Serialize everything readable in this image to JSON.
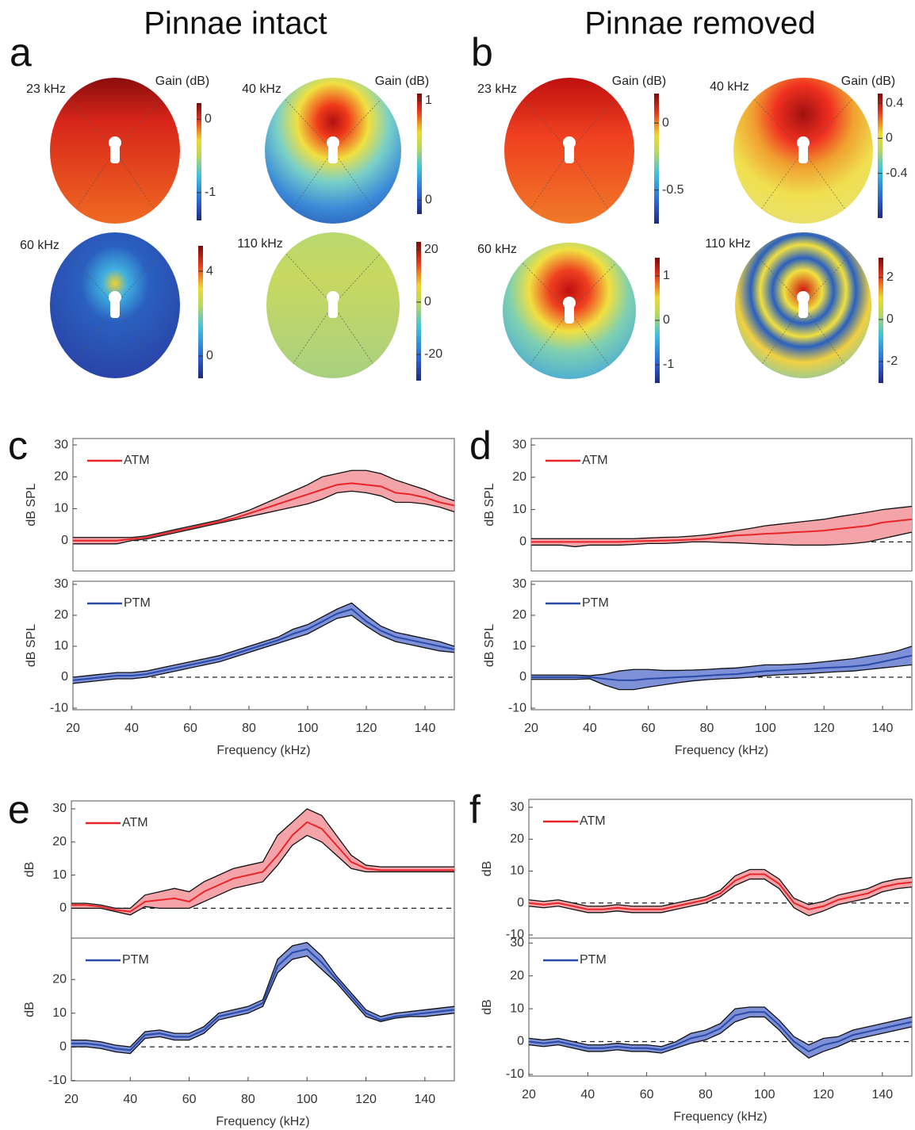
{
  "column_titles": [
    "Pinnae intact",
    "Pinnae removed"
  ],
  "panel_labels": [
    "a",
    "b",
    "c",
    "d",
    "e",
    "f"
  ],
  "chart_data": [
    {
      "type": "heatmap",
      "title": "23 kHz",
      "colorbar_label": "Gain (dB)",
      "clim": [
        -1.38,
        0.22
      ],
      "cticks": [
        0,
        -1
      ]
    },
    {
      "type": "heatmap",
      "title": "40 kHz",
      "colorbar_label": "Gain (dB)",
      "clim": [
        -0.14,
        1.07
      ],
      "cticks": [
        1,
        0
      ]
    },
    {
      "type": "heatmap",
      "title": "60 kHz",
      "clim": [
        -1.05,
        5.2
      ],
      "cticks": [
        4,
        0
      ]
    },
    {
      "type": "heatmap",
      "title": "110 kHz",
      "clim": [
        -30,
        23
      ],
      "cticks": [
        20,
        0,
        -20
      ]
    },
    {
      "type": "heatmap",
      "title": "23 kHz",
      "colorbar_label": "Gain (dB)",
      "clim": [
        -0.75,
        0.22
      ],
      "cticks": [
        0,
        -0.5
      ]
    },
    {
      "type": "heatmap",
      "title": "40 kHz",
      "colorbar_label": "Gain (dB)",
      "clim": [
        -0.91,
        0.51
      ],
      "cticks": [
        0.4,
        0,
        -0.4
      ]
    },
    {
      "type": "heatmap",
      "title": "60 kHz",
      "clim": [
        -1.41,
        1.41
      ],
      "cticks": [
        1,
        0,
        -1
      ]
    },
    {
      "type": "heatmap",
      "title": "110 kHz",
      "clim": [
        -3.02,
        2.94
      ],
      "cticks": [
        2,
        0,
        -2
      ]
    },
    {
      "type": "line",
      "ylabel": "dB SPL",
      "xlim": [
        20,
        150
      ],
      "ylim": [
        -9.5,
        32
      ],
      "yticks": [
        0,
        10,
        20,
        30
      ],
      "reference_line": 0,
      "x": [
        20,
        25,
        30,
        35,
        40,
        45,
        50,
        55,
        60,
        65,
        70,
        75,
        80,
        85,
        90,
        95,
        100,
        105,
        110,
        115,
        120,
        125,
        130,
        135,
        140,
        145,
        150
      ],
      "series": [
        {
          "name": "ATM",
          "color": "#e8262a",
          "band_color": "#f4a3a8",
          "values": [
            0,
            0,
            0,
            0,
            0.5,
            1,
            2,
            3,
            4,
            5,
            6,
            7,
            8.5,
            10,
            11.5,
            13,
            14.5,
            16,
            17.5,
            18,
            17.5,
            17,
            15,
            14.5,
            13.5,
            12,
            11
          ],
          "lower": [
            -1,
            -1,
            -1,
            -1,
            0,
            0.5,
            1.5,
            2.5,
            3.5,
            4.5,
            5.5,
            6.5,
            7.5,
            8.5,
            9.5,
            10.5,
            11.5,
            13,
            15,
            15.5,
            15,
            14,
            12,
            12,
            11.5,
            10.5,
            9
          ],
          "upper": [
            1,
            1,
            1,
            1,
            1,
            1.5,
            2.5,
            3.5,
            4.5,
            5.5,
            6.5,
            8,
            9.5,
            11.5,
            13.5,
            15.5,
            17.5,
            20,
            21,
            22,
            22,
            21,
            19,
            17.5,
            16,
            14,
            12.5
          ]
        }
      ]
    },
    {
      "type": "line",
      "ylabel": "dB SPL",
      "xlabel": "Frequency (kHz)",
      "xlim": [
        20,
        150
      ],
      "xticks": [
        20,
        40,
        60,
        80,
        100,
        120,
        140
      ],
      "ylim": [
        -10.5,
        31
      ],
      "yticks": [
        -10,
        0,
        10,
        20,
        30
      ],
      "reference_line": 0,
      "x": [
        20,
        25,
        30,
        35,
        40,
        45,
        50,
        55,
        60,
        65,
        70,
        75,
        80,
        85,
        90,
        95,
        100,
        105,
        110,
        115,
        120,
        125,
        130,
        135,
        140,
        145,
        150
      ],
      "series": [
        {
          "name": "PTM",
          "color": "#2a4aa8",
          "band_color": "#7d90d8",
          "values": [
            -1,
            -0.5,
            0,
            0.5,
            0.5,
            1,
            2,
            3,
            4,
            5,
            6,
            7.5,
            9,
            10.5,
            12,
            14,
            15.5,
            18,
            20.5,
            22,
            18,
            15,
            13,
            12,
            11,
            10,
            9
          ],
          "lower": [
            -2,
            -1.5,
            -1,
            -0.5,
            -0.5,
            0,
            1,
            2,
            3,
            4,
            5,
            6.5,
            8,
            9.5,
            11,
            12.5,
            14,
            16.5,
            19,
            20,
            16.5,
            13.5,
            11.5,
            10.5,
            9.5,
            8.5,
            8
          ],
          "upper": [
            0,
            0.5,
            1,
            1.5,
            1.5,
            2,
            3,
            4,
            5,
            6,
            7,
            8.5,
            10,
            11.5,
            13,
            15.5,
            17,
            19.5,
            22,
            24,
            20,
            16.5,
            14.5,
            13.5,
            12.5,
            11.5,
            10
          ]
        }
      ]
    },
    {
      "type": "line",
      "ylabel": "dB SPL",
      "xlim": [
        20,
        150
      ],
      "ylim": [
        -9,
        32
      ],
      "yticks": [
        0,
        10,
        20,
        30
      ],
      "reference_line": 0,
      "x": [
        20,
        25,
        30,
        35,
        40,
        45,
        50,
        55,
        60,
        65,
        70,
        75,
        80,
        85,
        90,
        95,
        100,
        105,
        110,
        115,
        120,
        125,
        130,
        135,
        140,
        145,
        150
      ],
      "series": [
        {
          "name": "ATM",
          "color": "#e8262a",
          "band_color": "#f4a3a8",
          "values": [
            0,
            0,
            0,
            0,
            0,
            0,
            0,
            0.2,
            0.3,
            0.4,
            0.5,
            0.7,
            1,
            1.5,
            2,
            2.2,
            2.5,
            2.7,
            3,
            3.2,
            3.5,
            4,
            4.5,
            5,
            6,
            6.5,
            7
          ],
          "lower": [
            -1,
            -1,
            -1,
            -1.5,
            -1,
            -1,
            -1,
            -0.8,
            -0.5,
            -0.5,
            -0.3,
            0,
            0,
            -0.2,
            -0.3,
            -0.5,
            -0.7,
            -0.8,
            -1,
            -1,
            -1,
            -0.8,
            -0.5,
            0,
            1,
            2,
            3
          ],
          "upper": [
            1,
            1,
            1,
            1,
            1,
            1,
            1,
            1,
            1.2,
            1.4,
            1.5,
            1.8,
            2.2,
            2.8,
            3.5,
            4.2,
            5,
            5.5,
            6,
            6.5,
            7,
            7.8,
            8.5,
            9.2,
            10,
            10.5,
            11
          ]
        }
      ]
    },
    {
      "type": "line",
      "ylabel": "dB SPL",
      "xlabel": "Frequency (kHz)",
      "xlim": [
        20,
        150
      ],
      "xticks": [
        20,
        40,
        60,
        80,
        100,
        120,
        140
      ],
      "ylim": [
        -10.5,
        31
      ],
      "yticks": [
        -10,
        0,
        10,
        20,
        30
      ],
      "reference_line": 0,
      "x": [
        20,
        25,
        30,
        35,
        40,
        45,
        50,
        55,
        60,
        65,
        70,
        75,
        80,
        85,
        90,
        95,
        100,
        105,
        110,
        115,
        120,
        125,
        130,
        135,
        140,
        145,
        150
      ],
      "series": [
        {
          "name": "PTM",
          "color": "#2a4aa8",
          "band_color": "#7d90d8",
          "values": [
            0,
            0,
            0,
            0,
            0,
            -0.5,
            -1,
            -1,
            -0.5,
            -0.3,
            0,
            0.2,
            0.5,
            0.8,
            1,
            1.5,
            2,
            2.2,
            2.5,
            2.7,
            3,
            3.2,
            3.5,
            4,
            5,
            6,
            7
          ],
          "lower": [
            -0.7,
            -0.7,
            -0.7,
            -0.7,
            -0.5,
            -2.5,
            -4,
            -4,
            -3.2,
            -2.5,
            -1.8,
            -1.2,
            -0.8,
            -0.5,
            -0.3,
            0,
            0.5,
            0.8,
            1,
            1.2,
            1.5,
            1.8,
            2,
            2.5,
            3,
            3.5,
            4
          ],
          "upper": [
            0.7,
            0.7,
            0.7,
            0.7,
            0.5,
            1,
            2,
            2.5,
            2.5,
            2.2,
            2.2,
            2.3,
            2.5,
            2.8,
            3,
            3.5,
            4,
            4,
            4.2,
            4.5,
            5,
            5.5,
            6,
            6.8,
            7.5,
            8.5,
            10
          ]
        }
      ]
    },
    {
      "type": "line",
      "ylabel": "dB",
      "xlim": [
        20,
        150
      ],
      "ylim": [
        -9,
        32.4
      ],
      "yticks": [
        0,
        10,
        20,
        30
      ],
      "reference_line": 0,
      "x": [
        20,
        25,
        30,
        35,
        40,
        45,
        50,
        55,
        60,
        65,
        70,
        75,
        80,
        85,
        90,
        95,
        100,
        105,
        110,
        115,
        120,
        125,
        130,
        135,
        140,
        145,
        150
      ],
      "series": [
        {
          "name": "ATM",
          "color": "#e8262a",
          "band_color": "#f4a3a8",
          "values": [
            1,
            1,
            0.5,
            -0.5,
            -1,
            2,
            2.5,
            3,
            2,
            5,
            7,
            9,
            10,
            11,
            16,
            22,
            26,
            24,
            19,
            14,
            12,
            11.5,
            11.5,
            11.5,
            11.5,
            11.5,
            11.5
          ],
          "lower": [
            0,
            0,
            0,
            -1,
            -2,
            0.5,
            0,
            0,
            0,
            2,
            4,
            6,
            7,
            8,
            13,
            19,
            22,
            20,
            16,
            12,
            11,
            11,
            11,
            11,
            11,
            11,
            11
          ],
          "upper": [
            1.5,
            1.5,
            1,
            0,
            0,
            4,
            5,
            6,
            5,
            8,
            10,
            12,
            13,
            14,
            22,
            26,
            30,
            28,
            22,
            16,
            13,
            12.5,
            12.5,
            12.5,
            12.5,
            12.5,
            12.5
          ]
        }
      ]
    },
    {
      "type": "line",
      "ylabel": "dB",
      "xlabel": "Frequency (kHz)",
      "xlim": [
        20,
        150
      ],
      "xticks": [
        20,
        40,
        60,
        80,
        100,
        120,
        140
      ],
      "ylim": [
        -10.1,
        32.3
      ],
      "yticks": [
        -10,
        0,
        10,
        20
      ],
      "reference_line": 0,
      "x": [
        20,
        25,
        30,
        35,
        40,
        45,
        50,
        55,
        60,
        65,
        70,
        75,
        80,
        85,
        90,
        95,
        100,
        105,
        110,
        115,
        120,
        125,
        130,
        135,
        140,
        145,
        150
      ],
      "series": [
        {
          "name": "PTM",
          "color": "#2a4aa8",
          "band_color": "#7d90d8",
          "values": [
            1,
            1,
            0.5,
            -0.5,
            -1,
            3.5,
            4,
            3,
            3,
            5,
            9,
            10,
            11,
            13,
            24,
            28,
            29,
            25,
            20,
            15,
            10,
            8,
            9,
            9.5,
            10,
            10.5,
            11
          ],
          "lower": [
            0,
            0,
            -0.5,
            -1.5,
            -2,
            2.5,
            3,
            2,
            2,
            4,
            8,
            9,
            10,
            12,
            22,
            26,
            27,
            23,
            19,
            14,
            9,
            7.5,
            8.5,
            9,
            9,
            9.5,
            10
          ],
          "upper": [
            2,
            2,
            1.5,
            0.5,
            0,
            4.5,
            5,
            4,
            4,
            6,
            10,
            11,
            12,
            14,
            26,
            30,
            31,
            27,
            21,
            16,
            11,
            9,
            10,
            10.5,
            11,
            11.5,
            12
          ]
        }
      ]
    },
    {
      "type": "line",
      "ylabel": "dB",
      "xlim": [
        20,
        150
      ],
      "ylim": [
        -11,
        32.5
      ],
      "yticks": [
        -10,
        0,
        10,
        20,
        30
      ],
      "reference_line": 0,
      "x": [
        20,
        25,
        30,
        35,
        40,
        45,
        50,
        55,
        60,
        65,
        70,
        75,
        80,
        85,
        90,
        95,
        100,
        105,
        110,
        115,
        120,
        125,
        130,
        135,
        140,
        145,
        150
      ],
      "series": [
        {
          "name": "ATM",
          "color": "#e8262a",
          "band_color": "#f4a3a8",
          "values": [
            0,
            -0.5,
            0,
            -1,
            -2,
            -2,
            -1.5,
            -2,
            -2,
            -2,
            -1,
            0,
            1,
            3,
            7,
            9,
            9,
            6,
            0,
            -2,
            -1,
            1,
            2,
            3,
            5,
            6,
            6.5
          ],
          "lower": [
            -1,
            -1.5,
            -1,
            -2,
            -3,
            -3,
            -2.5,
            -3,
            -3,
            -3,
            -2,
            -1,
            0,
            2,
            5.5,
            7.5,
            7.5,
            4.5,
            -1.5,
            -4,
            -2.5,
            -0.5,
            0.5,
            1.5,
            3.5,
            4.5,
            5
          ],
          "upper": [
            1,
            0.5,
            1,
            0,
            -1,
            -1,
            -0.5,
            -1,
            -1,
            -1,
            0,
            1,
            2,
            4,
            8.5,
            10.5,
            10.5,
            7.5,
            1.5,
            -0.5,
            0.5,
            2.5,
            3.5,
            4.5,
            6.5,
            7.5,
            8
          ]
        }
      ]
    },
    {
      "type": "line",
      "ylabel": "dB",
      "xlabel": "Frequency (kHz)",
      "xlim": [
        20,
        150
      ],
      "xticks": [
        20,
        40,
        60,
        80,
        100,
        120,
        140
      ],
      "ylim": [
        -10.5,
        31.5
      ],
      "yticks": [
        -10,
        0,
        10,
        20,
        30
      ],
      "reference_line": 0,
      "x": [
        20,
        25,
        30,
        35,
        40,
        45,
        50,
        55,
        60,
        65,
        70,
        75,
        80,
        85,
        90,
        95,
        100,
        105,
        110,
        115,
        120,
        125,
        130,
        135,
        140,
        145,
        150
      ],
      "series": [
        {
          "name": "PTM",
          "color": "#2a4aa8",
          "band_color": "#7d90d8",
          "values": [
            0,
            -0.5,
            0,
            -1,
            -2,
            -2,
            -1.5,
            -2,
            -2,
            -2.5,
            -1,
            1,
            2,
            4,
            8,
            9,
            9,
            5,
            0,
            -3,
            -1,
            0,
            2,
            3,
            4,
            5,
            6
          ],
          "lower": [
            -1,
            -1.5,
            -1,
            -2,
            -3,
            -3,
            -2.5,
            -3,
            -3,
            -3.5,
            -2,
            -0.5,
            0.5,
            2.5,
            6,
            7.5,
            7.5,
            3.5,
            -1.5,
            -5,
            -3,
            -1.5,
            0.5,
            1.5,
            2.5,
            3.5,
            4.5
          ],
          "upper": [
            1,
            0.5,
            1,
            0,
            -1,
            -1,
            -0.5,
            -1,
            -1,
            -1.5,
            0,
            2.5,
            3.5,
            5.5,
            10,
            10.5,
            10.5,
            6.5,
            1.5,
            -1,
            1,
            1.5,
            3.5,
            4.5,
            5.5,
            6.5,
            7.5
          ]
        }
      ]
    }
  ]
}
